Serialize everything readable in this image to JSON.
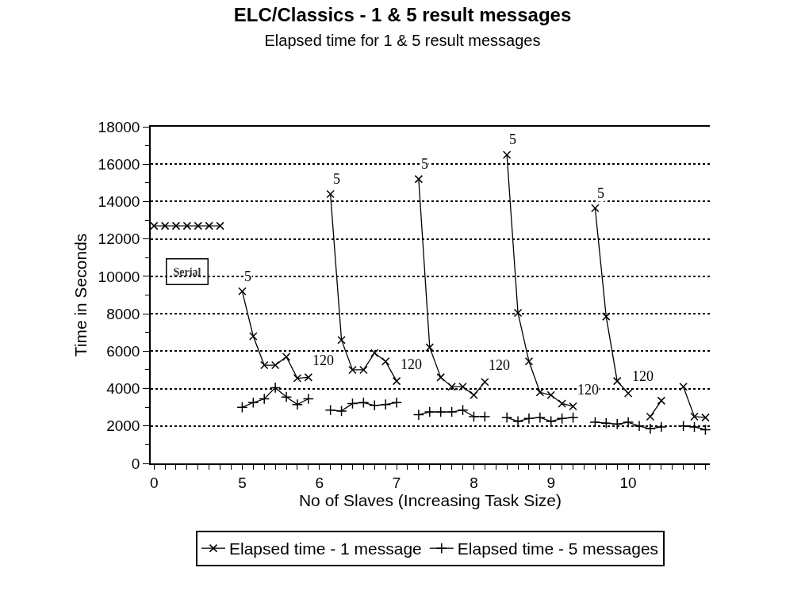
{
  "chart_data": {
    "type": "line",
    "title": "ELC/Classics - 1 & 5 result messages",
    "subtitle": "Elapsed time for 1 & 5 result messages",
    "xlabel": "No of Slaves (Increasing Task Size)",
    "ylabel": "Time in Seconds",
    "categories": [
      "0",
      null,
      null,
      null,
      null,
      null,
      null,
      null,
      "5",
      null,
      null,
      null,
      null,
      null,
      null,
      "6",
      null,
      null,
      null,
      null,
      null,
      null,
      "7",
      null,
      null,
      null,
      null,
      null,
      null,
      "8",
      null,
      null,
      null,
      null,
      null,
      null,
      "9",
      null,
      null,
      null,
      null,
      null,
      null,
      "10",
      null,
      null,
      null,
      null,
      null,
      null,
      null
    ],
    "series": [
      {
        "name": "Elapsed time - 1 message",
        "color": "#000000",
        "marker": "cross",
        "values": [
          null,
          null,
          null,
          null,
          null,
          null,
          null,
          null,
          9200,
          6800,
          5250,
          5250,
          5700,
          4550,
          4600,
          null,
          14400,
          6600,
          5000,
          5000,
          5900,
          5450,
          4400,
          null,
          15200,
          6200,
          4600,
          4100,
          4100,
          3650,
          4350,
          null,
          16500,
          8050,
          5450,
          3800,
          3650,
          3200,
          3050,
          null,
          13650,
          7850,
          4400,
          3750,
          null,
          2500,
          3350,
          null,
          4100,
          2500,
          2450
        ]
      },
      {
        "name": "Elapsed time - 5 messages",
        "color": "#000000",
        "marker": "plus",
        "values": [
          null,
          null,
          null,
          null,
          null,
          null,
          null,
          null,
          3000,
          3250,
          3450,
          4050,
          3550,
          3150,
          3450,
          null,
          2850,
          2800,
          3200,
          3250,
          3100,
          3150,
          3250,
          null,
          2600,
          2750,
          2750,
          2750,
          2850,
          2500,
          2500,
          null,
          2450,
          2250,
          2400,
          2450,
          2250,
          2400,
          2450,
          null,
          2200,
          2150,
          2100,
          2200,
          2000,
          1850,
          1950,
          null,
          2000,
          1950,
          1800
        ]
      },
      {
        "color": "#000000",
        "marker": "cross",
        "values": [
          12700,
          12700,
          12700,
          12700,
          12700,
          12700,
          12700,
          null,
          null,
          null,
          null,
          null,
          null,
          null,
          null,
          null,
          null,
          null,
          null,
          null,
          null,
          null,
          null,
          null,
          null,
          null,
          null,
          null,
          null,
          null,
          null,
          null,
          null,
          null,
          null,
          null,
          null,
          null,
          null,
          null,
          null,
          null,
          null,
          null,
          null,
          null,
          null,
          null,
          null,
          null,
          null
        ]
      }
    ],
    "annotations": [
      "Serial",
      "5",
      "120",
      "5",
      "120",
      "5",
      "120",
      "5",
      "120",
      "5",
      "120"
    ],
    "ylim": [
      0,
      18000
    ],
    "yticks": [
      0,
      {
        "value": 1000,
        "label": null
      },
      2000,
      {
        "value": 3000,
        "label": null
      },
      4000,
      {
        "value": 5000,
        "label": null
      },
      6000,
      {
        "value": 7000,
        "label": null
      },
      8000,
      {
        "value": 9000,
        "label": null
      },
      10000,
      {
        "value": 11000,
        "label": null
      },
      12000,
      {
        "value": 13000,
        "label": null
      },
      14000,
      {
        "value": 15000,
        "label": null
      },
      16000,
      {
        "value": 17000,
        "label": null
      },
      18000
    ],
    "grid": "y",
    "legend": "bottom",
    "line_style": "solid"
  }
}
